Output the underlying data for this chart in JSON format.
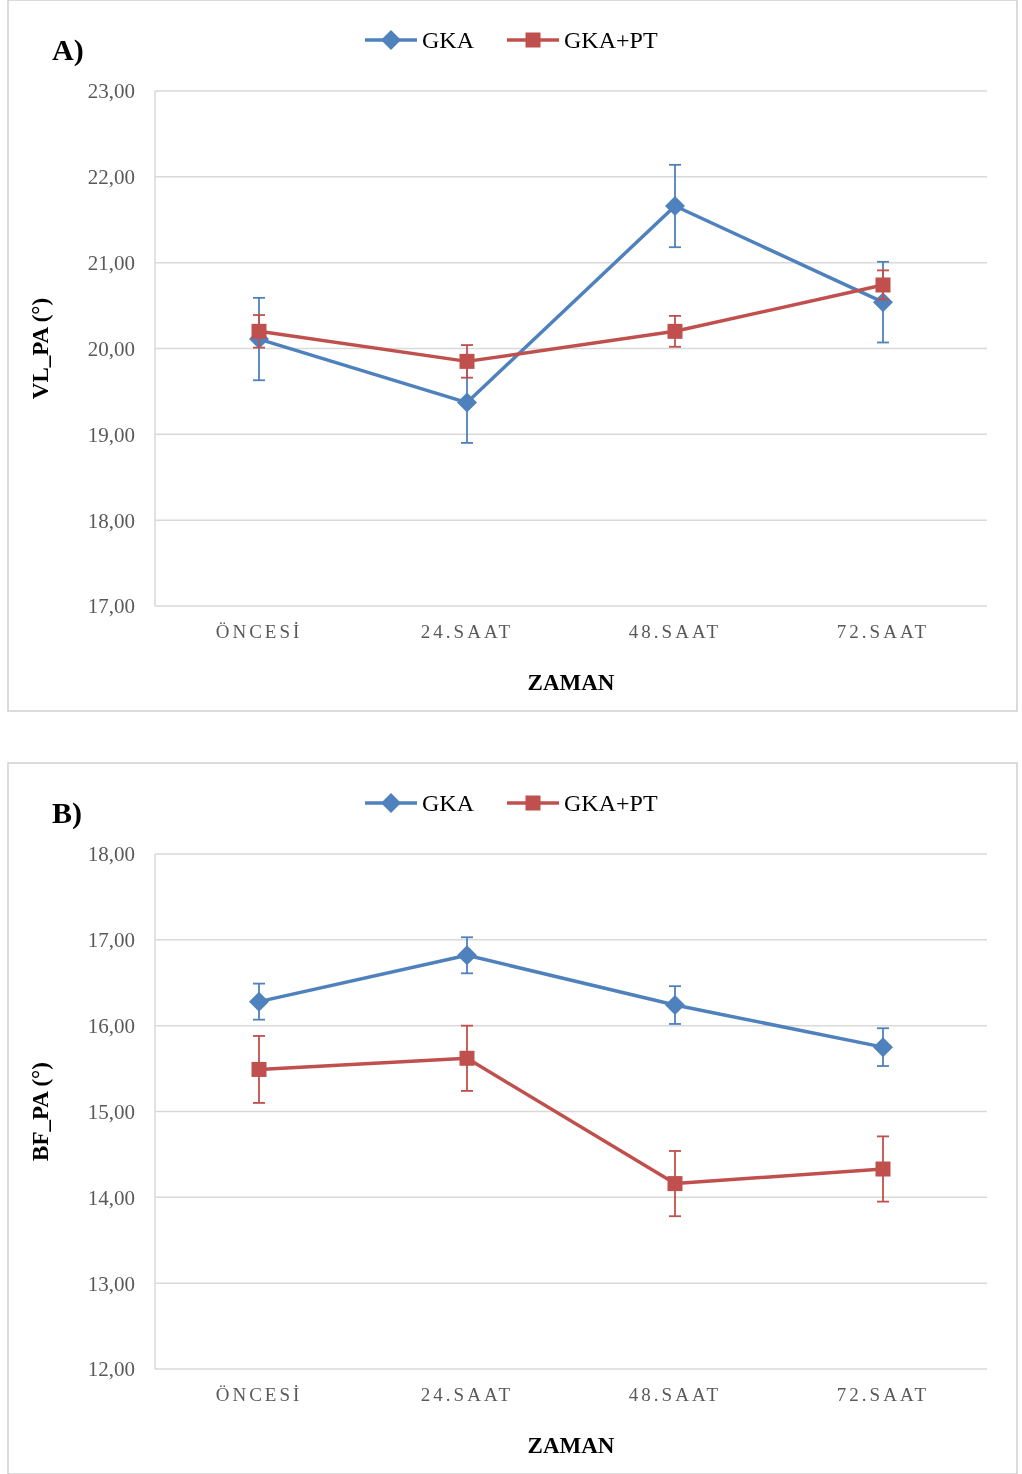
{
  "chart_data": [
    {
      "type": "line",
      "title": "A)",
      "xlabel": "ZAMAN",
      "ylabel": "VL_PA (°)",
      "categories": [
        "ÖNCESİ",
        "24.SAAT",
        "48.SAAT",
        "72.SAAT"
      ],
      "ylim": [
        17,
        23
      ],
      "yticks": [
        {
          "value": 17,
          "label": "17,00"
        },
        {
          "value": 18,
          "label": "18,00"
        },
        {
          "value": 19,
          "label": "19,00"
        },
        {
          "value": 20,
          "label": "20,00"
        },
        {
          "value": 21,
          "label": "21,00"
        },
        {
          "value": 22,
          "label": "22,00"
        },
        {
          "value": 23,
          "label": "23,00"
        }
      ],
      "grid": "y",
      "legend": "top",
      "series": [
        {
          "name": "GKA",
          "color": "#4f81bd",
          "marker": "diamond",
          "values": [
            20.11,
            19.37,
            21.66,
            20.54
          ],
          "errors": [
            0.48,
            0.47,
            0.48,
            0.47
          ]
        },
        {
          "name": "GKA+PT",
          "color": "#c0504d",
          "marker": "square",
          "values": [
            20.2,
            19.85,
            20.2,
            20.74
          ],
          "errors": [
            0.19,
            0.19,
            0.18,
            0.17
          ]
        }
      ]
    },
    {
      "type": "line",
      "title": "B)",
      "xlabel": "ZAMAN",
      "ylabel": "BF_PA (°)",
      "categories": [
        "ÖNCESİ",
        "24.SAAT",
        "48.SAAT",
        "72.SAAT"
      ],
      "ylim": [
        12,
        18
      ],
      "yticks": [
        {
          "value": 12,
          "label": "12,00"
        },
        {
          "value": 13,
          "label": "13,00"
        },
        {
          "value": 14,
          "label": "14,00"
        },
        {
          "value": 15,
          "label": "15,00"
        },
        {
          "value": 16,
          "label": "16,00"
        },
        {
          "value": 17,
          "label": "17,00"
        },
        {
          "value": 18,
          "label": "18,00"
        }
      ],
      "grid": "y",
      "legend": "top",
      "series": [
        {
          "name": "GKA",
          "color": "#4f81bd",
          "marker": "diamond",
          "values": [
            16.28,
            16.82,
            16.24,
            15.75
          ],
          "errors": [
            0.21,
            0.21,
            0.22,
            0.22
          ]
        },
        {
          "name": "GKA+PT",
          "color": "#c0504d",
          "marker": "square",
          "values": [
            15.49,
            15.62,
            14.16,
            14.33
          ],
          "errors": [
            0.39,
            0.38,
            0.38,
            0.38
          ]
        }
      ]
    }
  ]
}
